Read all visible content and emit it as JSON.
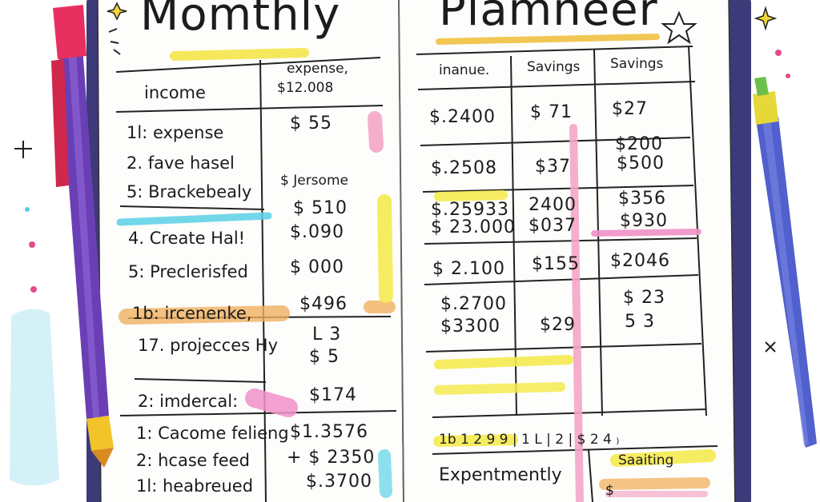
{
  "title_left": "Momthly",
  "title_right": "Plamneer",
  "left": {
    "header_income": "income",
    "header_expense_line1": "expense,",
    "header_expense_line2": "$12.008",
    "rows": [
      {
        "label": "1l:  expense",
        "value": "$  55"
      },
      {
        "label": "2. fave hasel",
        "value": ""
      },
      {
        "label": "5: Brackebealy",
        "value": "$  Jersome"
      },
      {
        "label": "",
        "value": "$ 510"
      },
      {
        "label": "4. Create Hal!",
        "value": "$.090"
      },
      {
        "label": "5: Preclerisfed",
        "value": "$ 000"
      },
      {
        "label": "1b: ircenenke,",
        "value": "$496"
      },
      {
        "label": "17. projecces Hy",
        "value": "L 3"
      },
      {
        "label": "",
        "value": "$  5"
      },
      {
        "label": "2:  imdercal:",
        "value": "$174"
      },
      {
        "label": "1: Cacome felieng",
        "value": "$1.3576"
      },
      {
        "label": "2:  hcase feed",
        "value": "+ $ 2350"
      },
      {
        "label": "1l:  heabreued",
        "value": "$.3700"
      }
    ]
  },
  "right": {
    "headers": [
      "inanue.",
      "Savings",
      "Savings"
    ],
    "rows": [
      [
        "$.2400",
        "$ 71",
        "$27"
      ],
      [
        "$.2508",
        "$37",
        "$200"
      ],
      [
        "",
        "",
        "$500"
      ],
      [
        "$.25933",
        "2400",
        "$356"
      ],
      [
        "$ 23.000",
        "$037",
        "$930"
      ],
      [
        "$ 2.100",
        "$155",
        "$2046"
      ],
      [
        "$.2700",
        "",
        "$ 23"
      ],
      [
        "$3300",
        "$29",
        "5 3"
      ]
    ],
    "footer_numbers": "1b 1 2 9   9 | 1   L | 2  |  $  2  4 ₎",
    "footer_label": "Expentmently",
    "footer_saving": "Saaiting",
    "footer_dollar": "$"
  }
}
